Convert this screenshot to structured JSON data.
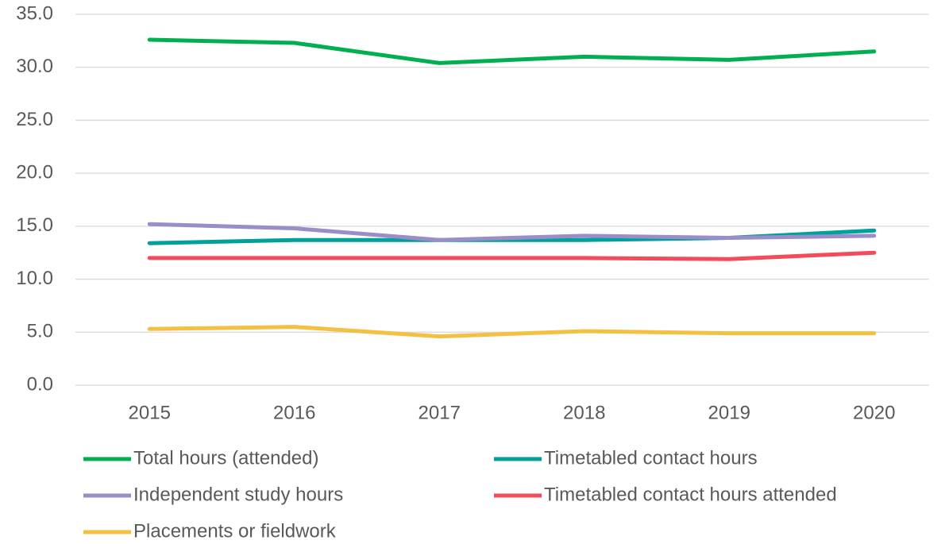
{
  "chart_data": {
    "type": "line",
    "categories": [
      "2015",
      "2016",
      "2017",
      "2018",
      "2019",
      "2020"
    ],
    "series": [
      {
        "name": "Total hours (attended)",
        "color": "#00b050",
        "values": [
          32.6,
          32.3,
          30.4,
          31.0,
          30.7,
          31.5
        ]
      },
      {
        "name": "Timetabled contact hours",
        "color": "#00a19a",
        "values": [
          13.4,
          13.7,
          13.7,
          13.7,
          13.9,
          14.6
        ]
      },
      {
        "name": "Independent study hours",
        "color": "#9b8dc8",
        "values": [
          15.2,
          14.8,
          13.7,
          14.1,
          13.9,
          14.1
        ]
      },
      {
        "name": "Timetabled contact hours attended",
        "color": "#f24c5c",
        "values": [
          12.0,
          12.0,
          12.0,
          12.0,
          11.9,
          12.5
        ]
      },
      {
        "name": "Placements or fieldwork",
        "color": "#f5bf42",
        "values": [
          5.3,
          5.5,
          4.6,
          5.1,
          4.9,
          4.9
        ]
      }
    ],
    "ylim": [
      0,
      35
    ],
    "yticks": [
      {
        "value": 0,
        "label": "0.0"
      },
      {
        "value": 5,
        "label": "5.0"
      },
      {
        "value": 10,
        "label": "10.0"
      },
      {
        "value": 15,
        "label": "15.0"
      },
      {
        "value": 20,
        "label": "20.0"
      },
      {
        "value": 25,
        "label": "25.0"
      },
      {
        "value": 30,
        "label": "30.0"
      },
      {
        "value": 35,
        "label": "35.0"
      }
    ],
    "grid": true,
    "legend": "bottom"
  }
}
